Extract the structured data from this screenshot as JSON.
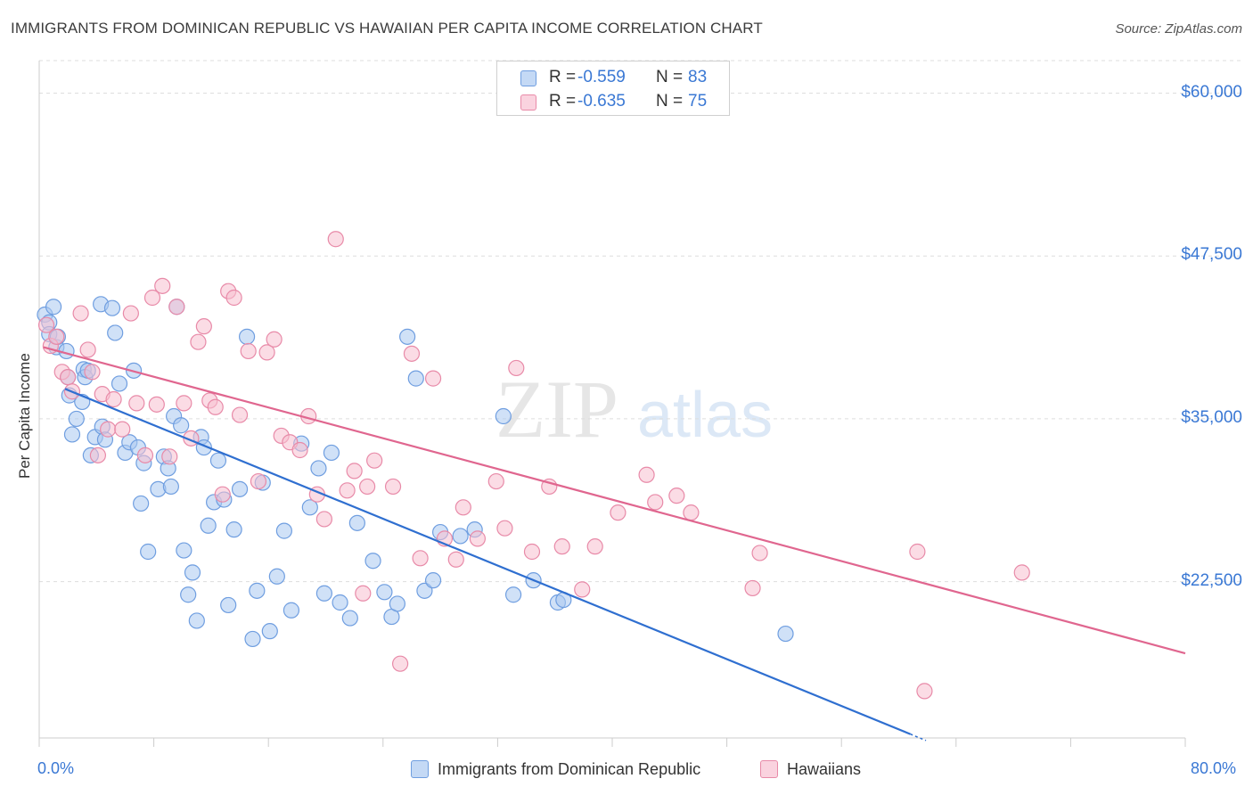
{
  "title": "IMMIGRANTS FROM DOMINICAN REPUBLIC VS HAWAIIAN PER CAPITA INCOME CORRELATION CHART",
  "source": "Source: ZipAtlas.com",
  "watermark": {
    "zip": "ZIP",
    "atlas": "atlas"
  },
  "legend": {
    "rows": [
      {
        "r_label": "R =",
        "r_value": "-0.559",
        "n_label": "N =",
        "n_value": "83"
      },
      {
        "r_label": "R =",
        "r_value": "-0.635",
        "n_label": "N =",
        "n_value": "75"
      }
    ]
  },
  "bottom_legend": {
    "series1": "Immigrants from Dominican Republic",
    "series2": "Hawaiians"
  },
  "colors": {
    "blue_fill": "#a9c8f0",
    "blue_stroke": "#6f9ee0",
    "blue_line": "#2f6fd0",
    "pink_fill": "#f7bfd0",
    "pink_stroke": "#e88aa8",
    "pink_line": "#e0668f",
    "tick_text": "#3a78d4",
    "grid": "#dddddd"
  },
  "chart_data": {
    "type": "scatter",
    "title": "IMMIGRANTS FROM DOMINICAN REPUBLIC VS HAWAIIAN PER CAPITA INCOME CORRELATION CHART",
    "xlabel": "",
    "ylabel": "Per Capita Income",
    "xlim": [
      0,
      80
    ],
    "ylim": [
      10500,
      62500
    ],
    "x_tick_labels": [
      "0.0%",
      "80.0%"
    ],
    "y_ticks": [
      22500,
      35000,
      47500,
      60000
    ],
    "y_tick_labels": [
      "$22,500",
      "$35,000",
      "$47,500",
      "$60,000"
    ],
    "grid": "horizontal dashed",
    "legend_position": "top-center",
    "series": [
      {
        "name": "Immigrants from Dominican Republic",
        "color": "#a9c8f0",
        "trend": {
          "x": [
            1.8,
            60.8
          ],
          "y": [
            37300,
            10800
          ]
        },
        "points": [
          [
            0.4,
            43
          ],
          [
            0.7,
            42.4
          ],
          [
            0.7,
            41.5
          ],
          [
            1.2,
            40.5
          ],
          [
            1.3,
            41.3
          ],
          [
            1.9,
            40.2
          ],
          [
            2.0,
            38.2
          ],
          [
            2.1,
            36.8
          ],
          [
            2.3,
            33.8
          ],
          [
            2.6,
            35
          ],
          [
            3.1,
            38.8
          ],
          [
            3.2,
            38.2
          ],
          [
            3.4,
            38.7
          ],
          [
            3.6,
            32.2
          ],
          [
            3.9,
            33.6
          ],
          [
            4.3,
            43.8
          ],
          [
            4.4,
            34.4
          ],
          [
            4.6,
            33.4
          ],
          [
            5.1,
            43.5
          ],
          [
            5.3,
            41.6
          ],
          [
            5.6,
            37.7
          ],
          [
            6.0,
            32.4
          ],
          [
            6.3,
            33.2
          ],
          [
            6.6,
            38.7
          ],
          [
            6.9,
            32.8
          ],
          [
            7.1,
            28.5
          ],
          [
            7.3,
            31.6
          ],
          [
            7.6,
            24.8
          ],
          [
            8.3,
            29.6
          ],
          [
            8.7,
            32.1
          ],
          [
            9.0,
            31.2
          ],
          [
            9.2,
            29.8
          ],
          [
            9.4,
            35.2
          ],
          [
            9.6,
            43.6
          ],
          [
            9.9,
            34.5
          ],
          [
            10.1,
            24.9
          ],
          [
            10.4,
            21.5
          ],
          [
            10.7,
            23.2
          ],
          [
            11.0,
            19.5
          ],
          [
            11.3,
            33.6
          ],
          [
            11.5,
            32.8
          ],
          [
            11.8,
            26.8
          ],
          [
            12.2,
            28.6
          ],
          [
            12.5,
            31.8
          ],
          [
            12.9,
            28.8
          ],
          [
            13.2,
            20.7
          ],
          [
            13.6,
            26.5
          ],
          [
            14.0,
            29.6
          ],
          [
            14.5,
            41.3
          ],
          [
            14.9,
            18.1
          ],
          [
            15.2,
            21.8
          ],
          [
            15.6,
            30.1
          ],
          [
            16.1,
            18.7
          ],
          [
            16.6,
            22.9
          ],
          [
            17.1,
            26.4
          ],
          [
            17.6,
            20.3
          ],
          [
            18.3,
            33.1
          ],
          [
            18.9,
            28.2
          ],
          [
            19.5,
            31.2
          ],
          [
            19.9,
            21.6
          ],
          [
            20.4,
            32.4
          ],
          [
            21.0,
            20.9
          ],
          [
            21.7,
            19.7
          ],
          [
            22.2,
            27.0
          ],
          [
            23.3,
            24.1
          ],
          [
            24.1,
            21.7
          ],
          [
            24.6,
            19.8
          ],
          [
            25.0,
            20.8
          ],
          [
            25.7,
            41.3
          ],
          [
            26.3,
            38.1
          ],
          [
            26.9,
            21.8
          ],
          [
            27.5,
            22.6
          ],
          [
            28.0,
            26.3
          ],
          [
            29.4,
            26.0
          ],
          [
            30.4,
            26.5
          ],
          [
            32.4,
            35.2
          ],
          [
            33.1,
            21.5
          ],
          [
            34.5,
            22.6
          ],
          [
            36.2,
            20.9
          ],
          [
            36.6,
            21.1
          ],
          [
            52.1,
            18.5
          ],
          [
            1.0,
            43.6
          ],
          [
            3.0,
            36.3
          ]
        ]
      },
      {
        "name": "Hawaiians",
        "color": "#f7bfd0",
        "trend": {
          "x": [
            0.3,
            80
          ],
          "y": [
            40500,
            17000
          ]
        },
        "points": [
          [
            0.5,
            42.2
          ],
          [
            0.8,
            40.6
          ],
          [
            1.2,
            41.3
          ],
          [
            1.6,
            38.6
          ],
          [
            2.0,
            38.2
          ],
          [
            2.3,
            37.1
          ],
          [
            2.9,
            43.1
          ],
          [
            3.4,
            40.3
          ],
          [
            3.7,
            38.6
          ],
          [
            4.1,
            32.2
          ],
          [
            4.4,
            36.9
          ],
          [
            4.8,
            34.2
          ],
          [
            5.2,
            36.5
          ],
          [
            5.8,
            34.2
          ],
          [
            6.4,
            43.1
          ],
          [
            6.8,
            36.2
          ],
          [
            7.4,
            32.2
          ],
          [
            7.9,
            44.3
          ],
          [
            8.2,
            36.1
          ],
          [
            8.6,
            45.2
          ],
          [
            9.1,
            32.1
          ],
          [
            9.6,
            43.6
          ],
          [
            10.1,
            36.2
          ],
          [
            10.6,
            33.5
          ],
          [
            11.1,
            40.9
          ],
          [
            11.5,
            42.1
          ],
          [
            11.9,
            36.4
          ],
          [
            12.3,
            35.9
          ],
          [
            12.8,
            29.2
          ],
          [
            13.2,
            44.8
          ],
          [
            13.6,
            44.3
          ],
          [
            14.0,
            35.3
          ],
          [
            14.6,
            40.2
          ],
          [
            15.3,
            30.2
          ],
          [
            15.9,
            40.1
          ],
          [
            16.4,
            41.1
          ],
          [
            16.9,
            33.7
          ],
          [
            17.5,
            33.2
          ],
          [
            18.2,
            32.6
          ],
          [
            18.8,
            35.2
          ],
          [
            19.4,
            29.2
          ],
          [
            19.9,
            27.3
          ],
          [
            20.7,
            48.8
          ],
          [
            21.5,
            29.5
          ],
          [
            22.0,
            31.0
          ],
          [
            22.6,
            21.6
          ],
          [
            22.9,
            29.8
          ],
          [
            23.4,
            31.8
          ],
          [
            24.7,
            29.8
          ],
          [
            25.2,
            16.2
          ],
          [
            26.0,
            40.0
          ],
          [
            26.6,
            24.3
          ],
          [
            27.5,
            38.1
          ],
          [
            28.3,
            25.8
          ],
          [
            29.1,
            24.2
          ],
          [
            29.6,
            28.2
          ],
          [
            30.6,
            25.8
          ],
          [
            31.9,
            30.2
          ],
          [
            32.5,
            26.6
          ],
          [
            33.3,
            38.9
          ],
          [
            34.4,
            24.8
          ],
          [
            35.6,
            29.8
          ],
          [
            36.5,
            25.2
          ],
          [
            37.9,
            21.9
          ],
          [
            38.8,
            25.2
          ],
          [
            40.4,
            27.8
          ],
          [
            42.4,
            30.7
          ],
          [
            43.0,
            28.6
          ],
          [
            44.5,
            29.1
          ],
          [
            45.5,
            27.8
          ],
          [
            49.8,
            22.0
          ],
          [
            50.3,
            24.7
          ],
          [
            61.3,
            24.8
          ],
          [
            68.6,
            23.2
          ],
          [
            61.8,
            14.1
          ]
        ]
      }
    ]
  }
}
